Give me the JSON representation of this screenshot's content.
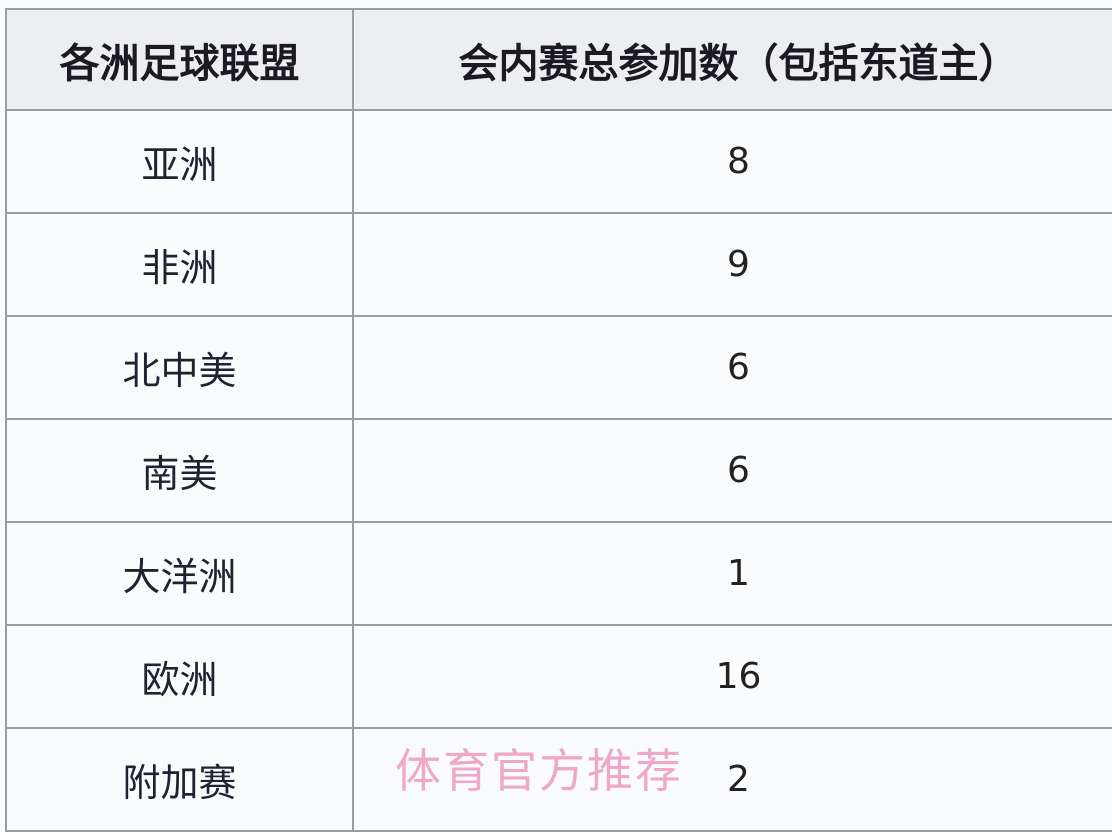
{
  "table": {
    "headers": [
      "各洲足球联盟",
      "会内赛总参加数（包括东道主）"
    ],
    "rows": [
      {
        "confederation": "亚洲",
        "count": "8"
      },
      {
        "confederation": "非洲",
        "count": "9"
      },
      {
        "confederation": "北中美",
        "count": "6"
      },
      {
        "confederation": "南美",
        "count": "6"
      },
      {
        "confederation": "大洋洲",
        "count": "1"
      },
      {
        "confederation": "欧洲",
        "count": "16"
      },
      {
        "confederation": "附加赛",
        "count": "2"
      }
    ]
  },
  "watermark": "体育官方推荐"
}
